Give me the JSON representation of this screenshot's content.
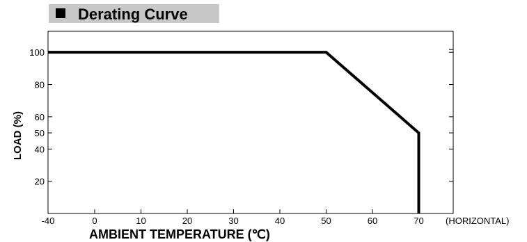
{
  "chart_data": {
    "type": "line",
    "title": "Derating Curve",
    "xlabel": "AMBIENT TEMPERATURE (℃)",
    "ylabel": "LOAD (%)",
    "x_ticks": [
      -40,
      0,
      10,
      20,
      30,
      40,
      50,
      60,
      70
    ],
    "x_tick_labels": [
      "-40",
      "0",
      "10",
      "20",
      "30",
      "40",
      "50",
      "60",
      "70"
    ],
    "x_note": "(HORIZONTAL)",
    "y_ticks": [
      20,
      40,
      50,
      60,
      80,
      100
    ],
    "y_tick_labels": [
      "20",
      "40",
      "50",
      "60",
      "80",
      "100"
    ],
    "ylim": [
      0,
      113
    ],
    "grid": false,
    "series": [
      {
        "x": [
          -40,
          50,
          70,
          70
        ],
        "y": [
          100,
          100,
          50,
          0
        ]
      }
    ],
    "colors": {
      "line": "#000000",
      "title_box": "#c8c8c8"
    }
  }
}
